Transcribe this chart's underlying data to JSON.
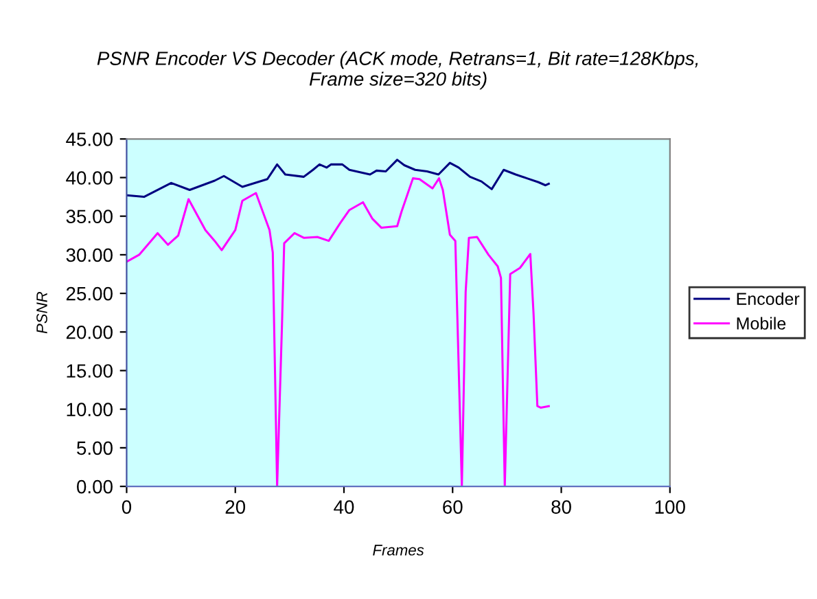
{
  "chart_data": {
    "type": "line",
    "title": "PSNR Encoder VS Decoder (ACK mode, Retrans=1, Bit rate=128Kbps,\nFrame size=320 bits)",
    "xlabel": "Frames",
    "ylabel": "PSNR",
    "xlim": [
      0,
      100
    ],
    "xticks": [
      0,
      20,
      40,
      60,
      80,
      100
    ],
    "ylim": [
      0,
      45
    ],
    "yticks": [
      {
        "value": 0,
        "label": "0.00"
      },
      {
        "value": 5,
        "label": "5.00"
      },
      {
        "value": 10,
        "label": "10.00"
      },
      {
        "value": 15,
        "label": "15.00"
      },
      {
        "value": 20,
        "label": "20.00"
      },
      {
        "value": 25,
        "label": "25.00"
      },
      {
        "value": 30,
        "label": "30.00"
      },
      {
        "value": 35,
        "label": "35.00"
      },
      {
        "value": 40,
        "label": "40.00"
      },
      {
        "value": 45,
        "label": "45.00"
      }
    ],
    "grid": false,
    "legend": "right",
    "marker": "none",
    "line_style": "solid",
    "series": [
      {
        "name": "Encoder",
        "color": "#000080",
        "x": [
          0,
          3.2,
          8.2,
          11.6,
          16.2,
          17.9,
          21.3,
          25.9,
          27.7,
          29.2,
          32.6,
          34.3,
          35.5,
          36.8,
          37.6,
          39.7,
          41.0,
          44.8,
          46.0,
          47.7,
          49.8,
          51.1,
          53.1,
          55.3,
          57.4,
          59.5,
          61.1,
          63.2,
          65.3,
          67.2,
          69.4,
          71.6,
          73.7,
          75.8,
          77.1,
          77.7
        ],
        "values": [
          37.7,
          37.5,
          39.3,
          38.4,
          39.6,
          40.2,
          38.8,
          39.8,
          41.7,
          40.4,
          40.1,
          41.0,
          41.7,
          41.3,
          41.7,
          41.7,
          41.0,
          40.4,
          40.9,
          40.8,
          42.3,
          41.6,
          41.0,
          40.8,
          40.4,
          41.9,
          41.3,
          40.1,
          39.5,
          38.5,
          41.0,
          40.4,
          39.9,
          39.4,
          39.0,
          39.2
        ]
      },
      {
        "name": "Mobile",
        "color": "#ff00ff",
        "x": [
          0,
          2.3,
          5.7,
          7.6,
          9.5,
          11.4,
          14.5,
          16.2,
          17.5,
          20.0,
          21.3,
          23.8,
          26.3,
          26.9,
          27.7,
          28.6,
          29.0,
          30.9,
          32.6,
          35.1,
          37.2,
          39.3,
          41.0,
          43.5,
          45.2,
          46.9,
          49.8,
          50.6,
          52.7,
          53.9,
          56.3,
          57.5,
          58.2,
          59.5,
          60.5,
          61.7,
          62.4,
          63.0,
          64.5,
          66.6,
          68.3,
          68.9,
          69.6,
          70.6,
          72.4,
          74.3,
          74.9,
          75.6,
          76.2,
          77.7
        ],
        "values": [
          29.1,
          30.0,
          32.8,
          31.3,
          32.5,
          37.2,
          33.2,
          31.8,
          30.6,
          33.2,
          37.0,
          38.0,
          33.2,
          30.3,
          0,
          21.1,
          31.5,
          32.8,
          32.2,
          32.3,
          31.8,
          34.1,
          35.8,
          36.8,
          34.7,
          33.5,
          33.7,
          35.6,
          39.9,
          39.8,
          38.6,
          39.9,
          38.4,
          32.6,
          31.8,
          0,
          25.2,
          32.2,
          32.3,
          30.0,
          28.5,
          27.0,
          0,
          27.5,
          28.3,
          30.1,
          22.3,
          10.4,
          10.2,
          10.4
        ]
      }
    ]
  }
}
